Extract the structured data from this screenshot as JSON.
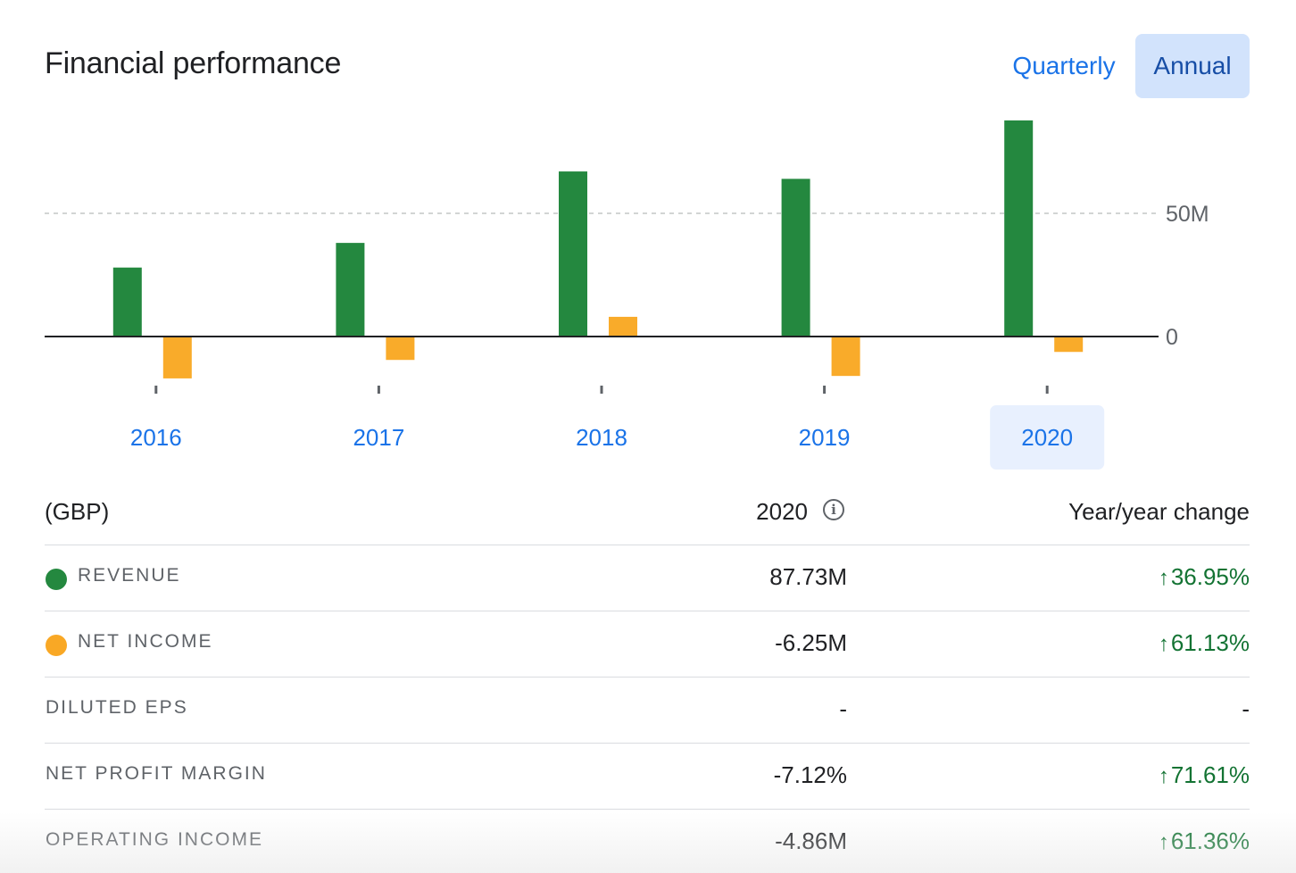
{
  "header": {
    "title": "Financial performance",
    "toggle": {
      "quarterly_label": "Quarterly",
      "annual_label": "Annual",
      "selected": "Annual"
    }
  },
  "chart_data": {
    "type": "bar",
    "categories": [
      "2016",
      "2017",
      "2018",
      "2019",
      "2020"
    ],
    "selected_category": "2020",
    "series": [
      {
        "name": "Revenue",
        "color": "#24883f",
        "values": [
          28,
          38,
          67,
          64,
          87.73
        ]
      },
      {
        "name": "Net income",
        "color": "#f9ab2a",
        "values": [
          -17,
          -9.5,
          8,
          -16,
          -6.25
        ]
      }
    ],
    "y_ticks": [
      {
        "value": 50,
        "label": "50M"
      },
      {
        "value": 0,
        "label": "0"
      }
    ],
    "ylim": [
      -20,
      90
    ],
    "grid": "dashed at 50M"
  },
  "table": {
    "unit_label": "(GBP)",
    "year_label": "2020",
    "info_icon": "info-icon",
    "change_label": "Year/year change",
    "rows": [
      {
        "label": "REVENUE",
        "dot_color": "#24883f",
        "value": "87.73M",
        "change": "36.95%",
        "direction": "up"
      },
      {
        "label": "NET INCOME",
        "dot_color": "#f9a825",
        "value": "-6.25M",
        "change": "61.13%",
        "direction": "up"
      },
      {
        "label": "DILUTED EPS",
        "dot_color": "",
        "value": "-",
        "change": "-",
        "direction": "none"
      },
      {
        "label": "NET PROFIT MARGIN",
        "dot_color": "",
        "value": "-7.12%",
        "change": "71.61%",
        "direction": "up"
      },
      {
        "label": "OPERATING INCOME",
        "dot_color": "",
        "value": "-4.86M",
        "change": "61.36%",
        "direction": "up"
      }
    ]
  }
}
